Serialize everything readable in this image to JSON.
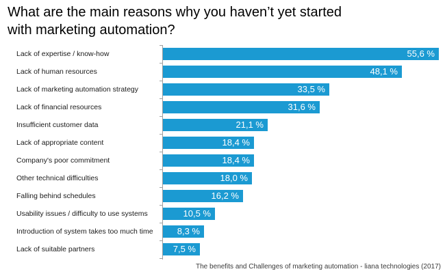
{
  "title": {
    "lines": [
      "What are the main reasons why you haven’t yet started",
      "with marketing automation?"
    ]
  },
  "source": {
    "text": "The benefits and Challenges of marketing automation - liana technologies (2017)"
  },
  "colors": {
    "background": "#ffffff",
    "bar": "#1b9ad2",
    "axis": "#9e9e9e",
    "title_text": "#000000",
    "category_text": "#1a1a1a",
    "value_text": "#ffffff",
    "source_text": "#3a3a3a"
  },
  "chart_data": {
    "type": "bar",
    "orientation": "horizontal",
    "title": "What are the main reasons why you haven’t yet started with marketing automation?",
    "xlabel": "",
    "ylabel": "",
    "unit": "percent",
    "xlim": [
      0,
      57
    ],
    "grid": false,
    "legend": false,
    "decimal_separator": ",",
    "sort": "descending",
    "categories": [
      "Lack of expertise / know-how",
      "Lack of human resources",
      "Lack of marketing automation strategy",
      "Lack of financial resources",
      "Insufficient customer data",
      "Lack of appropriate content",
      "Company's poor commitment",
      "Other technical difficulties",
      "Falling behind schedules",
      "Usability issues / difficulty to use systems",
      "Introduction of system takes too much time",
      "Lack of suitable partners"
    ],
    "values": [
      55.6,
      48.1,
      33.5,
      31.6,
      21.1,
      18.4,
      18.4,
      18.0,
      16.2,
      10.5,
      8.3,
      7.5
    ],
    "value_labels": [
      "55,6 %",
      "48,1 %",
      "33,5 %",
      "31,6 %",
      "21,1 %",
      "18,4 %",
      "18,4 %",
      "18,0 %",
      "16,2 %",
      "10,5 %",
      "8,3 %",
      "7,5 %"
    ],
    "source": "The benefits and Challenges of marketing automation - liana technologies (2017)"
  }
}
